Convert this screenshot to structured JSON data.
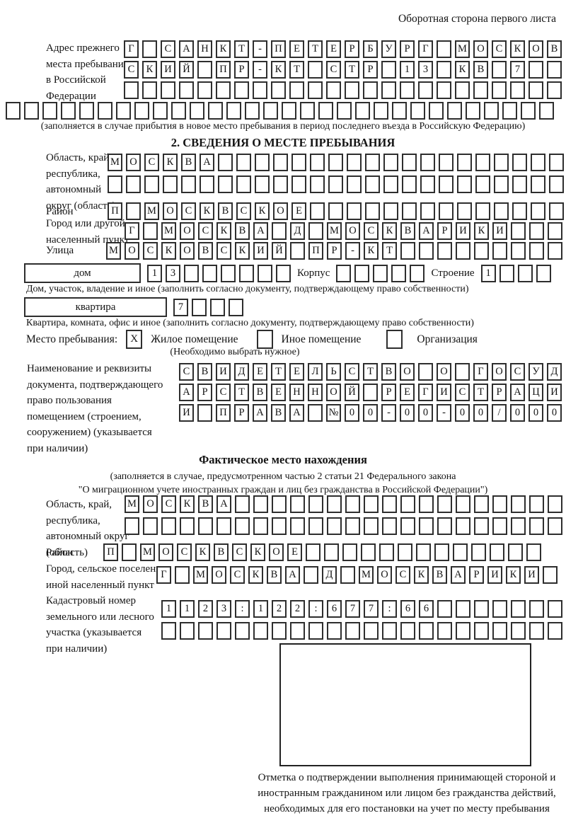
{
  "header": {
    "back_side_note": "Оборотная сторона первого листа"
  },
  "prev_address": {
    "label": "Адрес прежнего\nместа пребывания\nв Российской\nФедерации",
    "row1": {
      "cells": "Г САНКТ-ПЕТЕРБУРГ МОСКОВ",
      "count": 24
    },
    "row2": {
      "cells": "СКИЙ ПР-КТ СТР 13 КВ 7",
      "count": 24
    },
    "row3": {
      "cells": "",
      "count": 24
    },
    "row4": {
      "cells": "",
      "count": 30
    },
    "note": "(заполняется в случае прибытия в новое место пребывания в период последнего въезда в Российскую Федерацию)"
  },
  "section2": {
    "title": "2. СВЕДЕНИЯ О МЕСТЕ ПРЕБЫВАНИЯ",
    "region": {
      "label": "Область, край,\nреспублика,\nавтономный\nокруг (область)",
      "row1": {
        "cells": "МОСКВА",
        "count": 25
      },
      "row2": {
        "cells": "",
        "count": 25
      }
    },
    "district": {
      "label": "Район",
      "row": {
        "cells": "П МОСКВСКОЕ",
        "count": 25
      }
    },
    "city": {
      "label": "Город или другой\nнаселенный пункт",
      "row": {
        "cells": "Г МОСКВА Д МОСКВАРИКИ",
        "count": 24
      }
    },
    "street": {
      "label": "Улица",
      "row": {
        "cells": "МОСКОВСКИЙ ПР-КТ",
        "count": 25
      }
    },
    "house": {
      "box_label": "дом",
      "row": {
        "cells": "13",
        "count": 8
      },
      "korpus_label": "Корпус",
      "korpus_row": {
        "cells": "",
        "count": 5
      },
      "stroenie_label": "Строение",
      "stroenie_row": {
        "cells": "1",
        "count": 4
      }
    },
    "house_note": "Дом, участок, владение и иное (заполнить согласно документу, подтверждающему право собственности)",
    "apartment": {
      "box_label": "квартира",
      "row": {
        "cells": "7",
        "count": 4
      }
    },
    "apartment_note": "Квартира, комната, офис и иное (заполнить согласно документу, подтверждающему право собственности)",
    "place_type": {
      "label": "Место пребывания:",
      "options": [
        {
          "label": "Жилое помещение",
          "mark": "X"
        },
        {
          "label": "Иное помещение",
          "mark": ""
        },
        {
          "label": "Организация",
          "mark": ""
        }
      ],
      "note": "(Необходимо выбрать нужное)"
    },
    "document": {
      "label": "Наименование и реквизиты\nдокумента, подтверждающего\nправо пользования\nпомещением (строением,\nсооружением) (указывается\nпри наличии)",
      "row1": {
        "cells": "СВИДЕТЕЛЬСТВО О ГОСУД",
        "count": 21
      },
      "row2": {
        "cells": "АРСТВЕННОЙ РЕГИСТРАЦИ",
        "count": 21
      },
      "row3": {
        "cells": "И ПРАВА №00-00-00/000",
        "count": 21
      }
    }
  },
  "actual_location": {
    "title": "Фактическое место нахождения",
    "note1": "(заполняется в случае, предусмотренном частью 2 статьи 21 Федерального закона",
    "note2": "\"О миграционном учете иностранных граждан и лиц без гражданства в Российской Федерации\")",
    "region": {
      "label": "Область, край,\nреспублика,\nавтономный округ\n(область)",
      "row1": {
        "cells": "МОСКВА",
        "count": 24
      },
      "row2": {
        "cells": "",
        "count": 24
      }
    },
    "district": {
      "label": "Район",
      "row": {
        "cells": "П МОСКВСКОЕ",
        "count": 24
      }
    },
    "city": {
      "label": "Город, сельское поселение,\nиной населенный пункт",
      "row": {
        "cells": "Г МОСКВА Д МОСКВАРИКИ",
        "count": 22
      }
    },
    "cadastral": {
      "label": "Кадастровый номер\nземельного или лесного\nучастка (указывается\nпри наличии)",
      "row1": {
        "cells": "1123:122:677:66",
        "count": 22
      },
      "row2": {
        "cells": "",
        "count": 22
      }
    },
    "stamp_note": "Отметка о подтверждении выполнения принимающей стороной и иностранным гражданином или лицом без гражданства действий, необходимых для его постановки на учет по месту пребывания"
  }
}
